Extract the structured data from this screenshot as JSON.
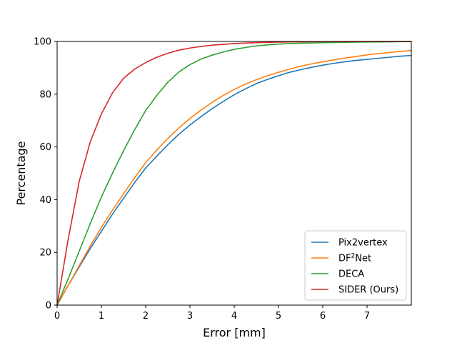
{
  "chart_data": {
    "type": "line",
    "title": "",
    "xlabel": "Error [mm]",
    "ylabel": "Percentage",
    "xlim": [
      0,
      8
    ],
    "ylim": [
      0,
      100
    ],
    "xticks": [
      0,
      1,
      2,
      3,
      4,
      5,
      6,
      7
    ],
    "yticks": [
      0,
      20,
      40,
      60,
      80,
      100
    ],
    "grid": false,
    "legend_position": "lower-right",
    "x": [
      0,
      0.25,
      0.5,
      0.75,
      1,
      1.25,
      1.5,
      1.75,
      2,
      2.25,
      2.5,
      2.75,
      3,
      3.25,
      3.5,
      3.75,
      4,
      4.25,
      4.5,
      4.75,
      5,
      5.25,
      5.5,
      5.75,
      6,
      6.25,
      6.5,
      6.75,
      7,
      7.25,
      7.5,
      7.75,
      8
    ],
    "series": [
      {
        "name": "Pix2vertex",
        "color": "#1f77b4",
        "values": [
          0,
          7.5,
          14.5,
          21.5,
          28.0,
          34.5,
          40.5,
          46.5,
          52.0,
          56.5,
          60.8,
          64.8,
          68.3,
          71.5,
          74.5,
          77.2,
          79.8,
          82.0,
          84.0,
          85.6,
          87.0,
          88.3,
          89.3,
          90.2,
          91.0,
          91.7,
          92.3,
          92.8,
          93.2,
          93.6,
          94.0,
          94.4,
          94.7
        ]
      },
      {
        "name": "DF²Net",
        "name_base": "DF",
        "name_sup": "2",
        "name_tail": "Net",
        "color": "#ff7f0e",
        "values": [
          0,
          7.5,
          15.0,
          22.5,
          29.5,
          36.0,
          42.2,
          48.3,
          54.0,
          58.8,
          63.2,
          67.2,
          70.8,
          74.0,
          76.9,
          79.5,
          81.8,
          83.8,
          85.5,
          87.0,
          88.3,
          89.5,
          90.6,
          91.5,
          92.3,
          93.0,
          93.7,
          94.3,
          94.9,
          95.4,
          95.8,
          96.2,
          96.6
        ]
      },
      {
        "name": "DECA",
        "color": "#2ca02c",
        "values": [
          0,
          10.0,
          20.5,
          31.0,
          41.0,
          50.0,
          58.5,
          66.5,
          73.8,
          79.5,
          84.5,
          88.4,
          91.2,
          93.3,
          94.8,
          96.0,
          97.0,
          97.7,
          98.3,
          98.7,
          99.0,
          99.2,
          99.35,
          99.45,
          99.55,
          99.62,
          99.68,
          99.73,
          99.78,
          99.82,
          99.86,
          99.9,
          99.93
        ]
      },
      {
        "name": "SIDER (Ours)",
        "color": "#d62728",
        "values": [
          0,
          25.0,
          47.0,
          62.0,
          72.5,
          80.5,
          86.0,
          89.5,
          92.0,
          94.0,
          95.5,
          96.7,
          97.5,
          98.1,
          98.6,
          98.9,
          99.2,
          99.4,
          99.55,
          99.65,
          99.75,
          99.8,
          99.85,
          99.88,
          99.9,
          99.92,
          99.94,
          99.95,
          99.96,
          99.97,
          99.98,
          99.99,
          100
        ]
      }
    ]
  }
}
